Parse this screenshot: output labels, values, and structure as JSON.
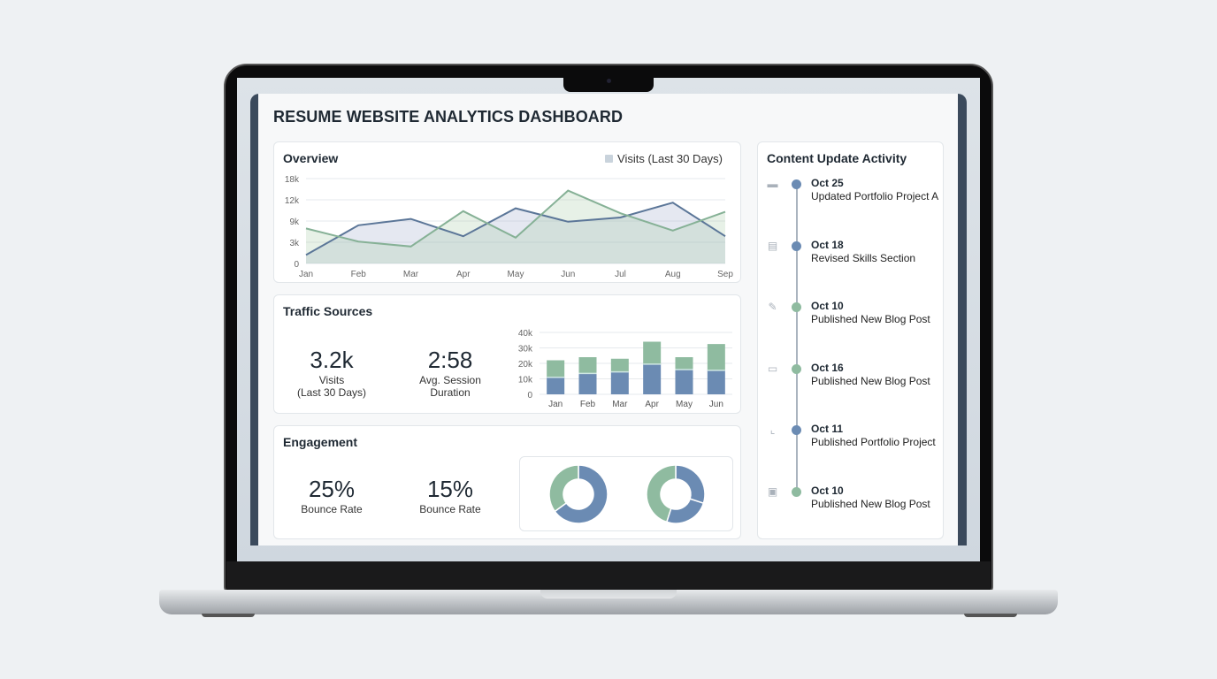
{
  "dashboard": {
    "title": "RESUME WEBSITE ANALYTICS DASHBOARD"
  },
  "colors": {
    "blue": "#6b8bb3",
    "green": "#8fbba0",
    "blue_line": "#5b7698",
    "green_line": "#86b196"
  },
  "overview": {
    "title": "Overview",
    "legend": "Visits (Last 30 Days)"
  },
  "traffic": {
    "title": "Traffic Sources",
    "stats": [
      {
        "value": "3.2k",
        "label1": "Visits",
        "label2": "(Last 30 Days)"
      },
      {
        "value": "2:58",
        "label1": "Avg. Session",
        "label2": "Duration"
      }
    ]
  },
  "engagement": {
    "title": "Engagement",
    "stats": [
      {
        "value": "25%",
        "label": "Bounce Rate"
      },
      {
        "value": "15%",
        "label": "Bounce Rate"
      }
    ]
  },
  "activity": {
    "title": "Content Update Activity",
    "items": [
      {
        "date": "Oct 25",
        "text": "Updated Portfolio Project A",
        "icon": "folder-icon",
        "color": "blue"
      },
      {
        "date": "Oct 18",
        "text": "Revised Skills Section",
        "icon": "document-icon",
        "color": "blue"
      },
      {
        "date": "Oct 10",
        "text": "Published New Blog Post",
        "icon": "pencil-icon",
        "color": "green"
      },
      {
        "date": "Oct 16",
        "text": "Published New Blog Post",
        "icon": "calendar-icon",
        "color": "green"
      },
      {
        "date": "Oct 11",
        "text": "Published Portfolio Project",
        "icon": "chart-icon",
        "color": "blue"
      },
      {
        "date": "Oct 10",
        "text": "Published New Blog Post",
        "icon": "clipboard-icon",
        "color": "green"
      }
    ]
  },
  "chart_data": [
    {
      "type": "area",
      "categories": [
        "Jan",
        "Feb",
        "Mar",
        "Apr",
        "May",
        "Jun",
        "Jul",
        "Aug",
        "Sep"
      ],
      "yticks": [
        "0",
        "3k",
        "9k",
        "12k",
        "18k"
      ],
      "ytick_values": [
        0,
        3000,
        9000,
        12000,
        18000
      ],
      "grid": true,
      "series": [
        {
          "values": [
            1200,
            7800,
            9300,
            4700,
            10800,
            8800,
            9500,
            11600,
            4700
          ]
        },
        {
          "values": [
            6900,
            3200,
            2400,
            10400,
            4300,
            14600,
            10100,
            6300,
            10300
          ]
        }
      ]
    },
    {
      "type": "bar",
      "stacked": true,
      "categories": [
        "Jan",
        "Feb",
        "Mar",
        "Apr",
        "May",
        "Jun"
      ],
      "yticks": [
        "0",
        "10k",
        "20k",
        "30k",
        "40k"
      ],
      "ylim": [
        0,
        40000
      ],
      "grid": true,
      "series": [
        {
          "values": [
            11000,
            13500,
            14500,
            19500,
            16000,
            15500
          ]
        },
        {
          "values": [
            11000,
            10500,
            8500,
            14500,
            8000,
            17000
          ]
        }
      ]
    },
    {
      "type": "pie",
      "donut": true,
      "values": [
        65,
        35
      ],
      "colors": [
        "blue",
        "green"
      ]
    },
    {
      "type": "pie",
      "donut": true,
      "values": [
        30,
        25,
        45
      ],
      "colors": [
        "blue",
        "blue",
        "green"
      ]
    }
  ]
}
